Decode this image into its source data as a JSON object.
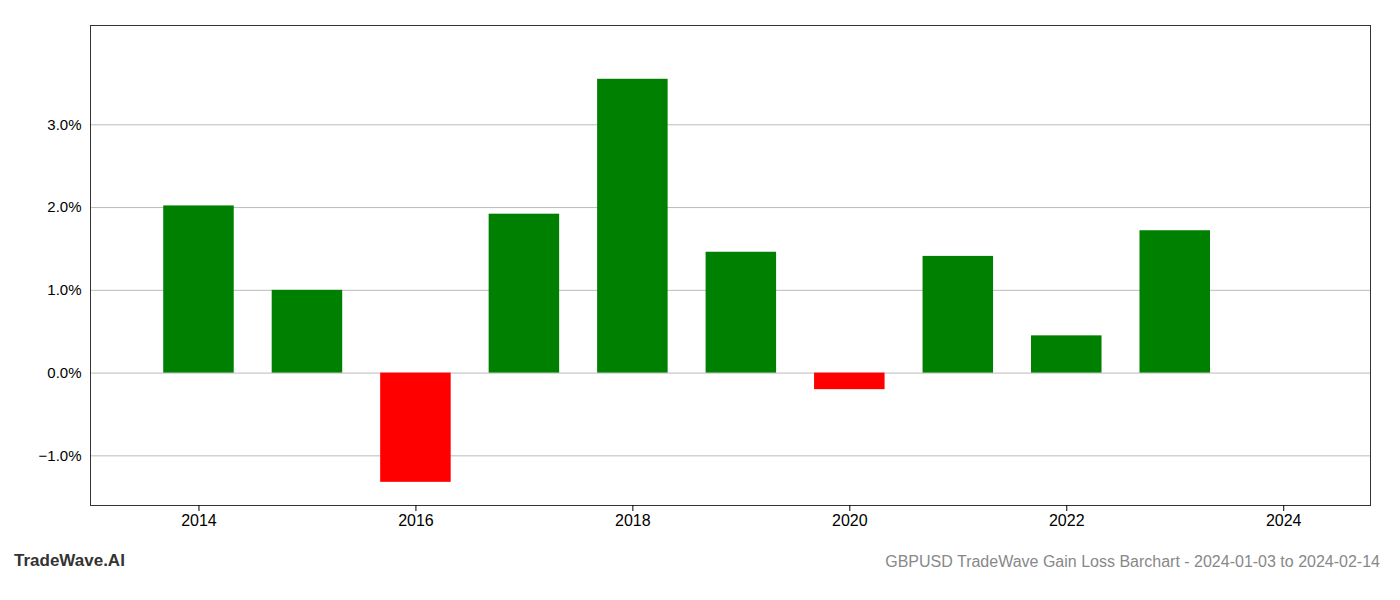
{
  "chart_data": {
    "type": "bar",
    "title": "GBPUSD TradeWave Gain Loss Barchart - 2024-01-03 to 2024-02-14",
    "annotations": [
      "TradeWave.AI"
    ],
    "x": [
      2014,
      2015,
      2016,
      2017,
      2018,
      2019,
      2020,
      2021,
      2022,
      2023
    ],
    "values": [
      0.0202,
      0.01,
      -0.0132,
      0.0192,
      0.0355,
      0.0146,
      -0.002,
      0.0141,
      0.0045,
      0.0172
    ],
    "colors": [
      "#008000",
      "#008000",
      "#FF0000",
      "#008000",
      "#008000",
      "#008000",
      "#FF0000",
      "#008000",
      "#008000",
      "#008000"
    ],
    "xlim": [
      2013.0,
      2024.8
    ],
    "xticks": [
      2014,
      2016,
      2018,
      2020,
      2022,
      2024
    ],
    "ylim": [
      -0.016,
      0.042
    ],
    "yticks": [
      {
        "value": -0.01,
        "label": "−1.0%"
      },
      {
        "value": 0.0,
        "label": "0.0%"
      },
      {
        "value": 0.01,
        "label": "1.0%"
      },
      {
        "value": 0.02,
        "label": "2.0%"
      },
      {
        "value": 0.03,
        "label": "3.0%"
      }
    ],
    "grid": "y"
  }
}
